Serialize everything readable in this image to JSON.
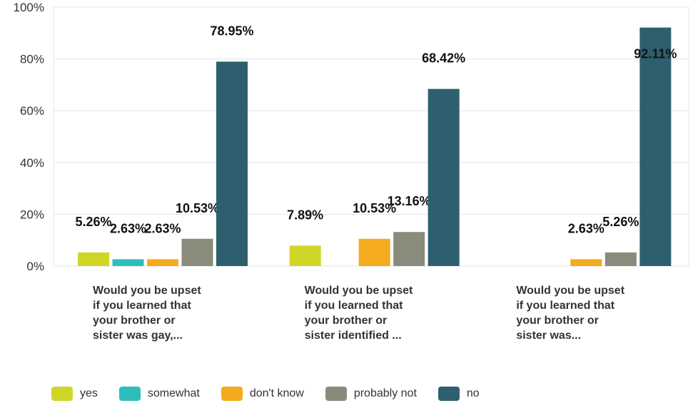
{
  "chart_data": {
    "type": "bar",
    "categories": [
      [
        "Would you be upset",
        "if you learned that",
        "your brother or",
        "sister was gay,..."
      ],
      [
        "Would you be upset",
        "if you learned that",
        "your brother or",
        "sister identified ..."
      ],
      [
        "Would you be upset",
        "if you learned that",
        "your brother or",
        "sister was..."
      ]
    ],
    "series": [
      {
        "name": "yes",
        "color": "#d0d628",
        "values": [
          5.26,
          7.89,
          0
        ],
        "labels": [
          "5.26%",
          "7.89%",
          ""
        ]
      },
      {
        "name": "somewhat",
        "color": "#2dbdbd",
        "values": [
          2.63,
          0,
          0
        ],
        "labels": [
          "2.63%",
          "",
          ""
        ]
      },
      {
        "name": "don't know",
        "color": "#f4ab1d",
        "values": [
          2.63,
          10.53,
          2.63
        ],
        "labels": [
          "2.63%",
          "10.53%",
          "2.63%"
        ]
      },
      {
        "name": "probably not",
        "color": "#8a8b7a",
        "values": [
          10.53,
          13.16,
          5.26
        ],
        "labels": [
          "10.53%",
          "13.16%",
          "5.26%"
        ]
      },
      {
        "name": "no",
        "color": "#2e5f6e",
        "values": [
          78.95,
          68.42,
          92.11
        ],
        "labels": [
          "78.95%",
          "68.42%",
          "92.11%"
        ]
      }
    ],
    "yticks": [
      "0%",
      "20%",
      "40%",
      "60%",
      "80%",
      "100%"
    ],
    "ylim": [
      0,
      100
    ],
    "grid": true,
    "legend": "bottom"
  }
}
